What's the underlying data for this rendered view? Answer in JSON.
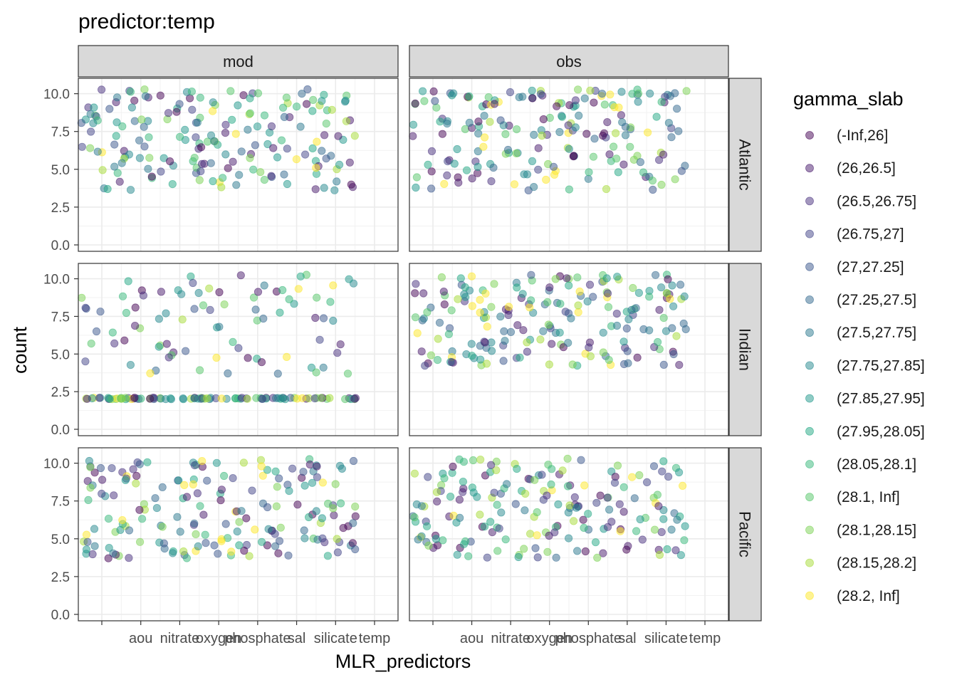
{
  "chart_data": {
    "type": "scatter",
    "title": "predictor:temp",
    "xlabel": "MLR_predictors",
    "ylabel": "count",
    "ylim": [
      0,
      10.5
    ],
    "y_ticks": [
      0.0,
      2.5,
      5.0,
      7.5,
      10.0
    ],
    "y_tick_labels": [
      "0.0",
      "2.5",
      "5.0",
      "7.5",
      "10.0"
    ],
    "x_ticks": [
      "",
      "aou",
      "nitrate",
      "oxygen",
      "phosphate",
      "sal",
      "silicate",
      "temp"
    ],
    "grid": true,
    "facet_columns": [
      "mod",
      "obs"
    ],
    "facet_rows": [
      "Atlantic",
      "Indian",
      "Pacific"
    ],
    "legend": {
      "title": "gamma_slab",
      "position": "right",
      "entries": [
        {
          "label": "(-Inf,26]",
          "color": "#440154"
        },
        {
          "label": "(26,26.5]",
          "color": "#481A6C"
        },
        {
          "label": "(26.5,26.75]",
          "color": "#472F7D"
        },
        {
          "label": "(26.75,27]",
          "color": "#414487"
        },
        {
          "label": "(27,27.25]",
          "color": "#39568C"
        },
        {
          "label": "(27.25,27.5]",
          "color": "#31688E"
        },
        {
          "label": "(27.5,27.75]",
          "color": "#2A788E"
        },
        {
          "label": "(27.75,27.85]",
          "color": "#23888E"
        },
        {
          "label": "(27.85,27.95]",
          "color": "#1F988B"
        },
        {
          "label": "(27.95,28.05]",
          "color": "#22A884"
        },
        {
          "label": "(28.05,28.1]",
          "color": "#35B779"
        },
        {
          "label": "(28.1, Inf]",
          "color": "#54C568"
        },
        {
          "label": "(28.1,28.15]",
          "color": "#7AD151"
        },
        {
          "label": "(28.15,28.2]",
          "color": "#A5DB36"
        },
        {
          "label": "(28.2, Inf]",
          "color": "#FDE725"
        }
      ]
    },
    "panels": [
      {
        "column": "mod",
        "row": "Atlantic",
        "y_bands": [
          [
            3.6,
            10.3
          ]
        ]
      },
      {
        "column": "obs",
        "row": "Atlantic",
        "y_bands": [
          [
            3.6,
            6.5
          ],
          [
            7.0,
            8.6
          ],
          [
            9.0,
            10.3
          ]
        ]
      },
      {
        "column": "mod",
        "row": "Indian",
        "y_bands": [
          [
            2.0,
            2.1
          ],
          [
            3.6,
            10.3
          ]
        ]
      },
      {
        "column": "obs",
        "row": "Indian",
        "y_bands": [
          [
            4.2,
            10.3
          ]
        ]
      },
      {
        "column": "mod",
        "row": "Pacific",
        "y_bands": [
          [
            3.7,
            10.3
          ]
        ]
      },
      {
        "column": "obs",
        "row": "Pacific",
        "y_bands": [
          [
            3.7,
            10.3
          ]
        ]
      }
    ]
  }
}
